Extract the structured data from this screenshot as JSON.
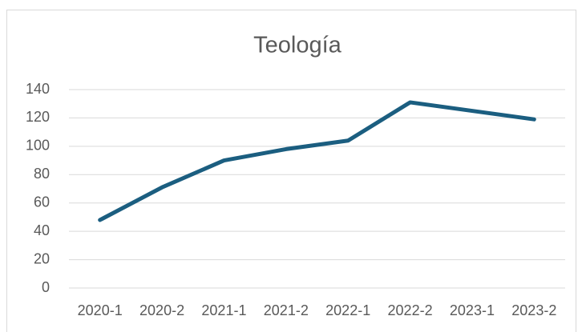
{
  "chart_data": {
    "type": "line",
    "title": "Teología",
    "categories": [
      "2020-1",
      "2020-2",
      "2021-1",
      "2021-2",
      "2022-1",
      "2022-2",
      "2023-1",
      "2023-2"
    ],
    "series": [
      {
        "color": "#1b5e80",
        "values": [
          48,
          71,
          90,
          98,
          104,
          131,
          125,
          119
        ]
      }
    ],
    "ylim": [
      0,
      140
    ],
    "yticks": [
      0,
      20,
      40,
      60,
      80,
      100,
      120,
      140
    ],
    "grid": true
  }
}
